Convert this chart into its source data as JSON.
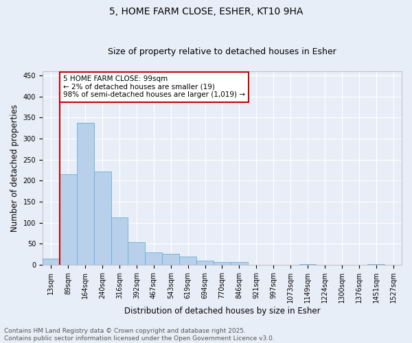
{
  "title_line1": "5, HOME FARM CLOSE, ESHER, KT10 9HA",
  "title_line2": "Size of property relative to detached houses in Esher",
  "xlabel": "Distribution of detached houses by size in Esher",
  "ylabel": "Number of detached properties",
  "categories": [
    "13sqm",
    "89sqm",
    "164sqm",
    "240sqm",
    "316sqm",
    "392sqm",
    "467sqm",
    "543sqm",
    "619sqm",
    "694sqm",
    "770sqm",
    "846sqm",
    "921sqm",
    "997sqm",
    "1073sqm",
    "1149sqm",
    "1224sqm",
    "1300sqm",
    "1376sqm",
    "1451sqm",
    "1527sqm"
  ],
  "values": [
    15,
    215,
    338,
    222,
    113,
    54,
    29,
    27,
    19,
    10,
    7,
    6,
    0,
    0,
    0,
    1,
    0,
    0,
    0,
    1,
    0
  ],
  "bar_color": "#b8d0ea",
  "bar_edge_color": "#6baed6",
  "vline_color": "#cc0000",
  "vline_index": 1,
  "annotation_text": "5 HOME FARM CLOSE: 99sqm\n← 2% of detached houses are smaller (19)\n98% of semi-detached houses are larger (1,019) →",
  "annotation_box_color": "white",
  "annotation_box_edge_color": "#cc0000",
  "ylim": [
    0,
    460
  ],
  "yticks": [
    0,
    50,
    100,
    150,
    200,
    250,
    300,
    350,
    400,
    450
  ],
  "footer_text": "Contains HM Land Registry data © Crown copyright and database right 2025.\nContains public sector information licensed under the Open Government Licence v3.0.",
  "background_color": "#e8eef8",
  "grid_color": "white",
  "title_fontsize": 10,
  "subtitle_fontsize": 9,
  "axis_label_fontsize": 8.5,
  "tick_fontsize": 7,
  "annotation_fontsize": 7.5,
  "footer_fontsize": 6.5
}
